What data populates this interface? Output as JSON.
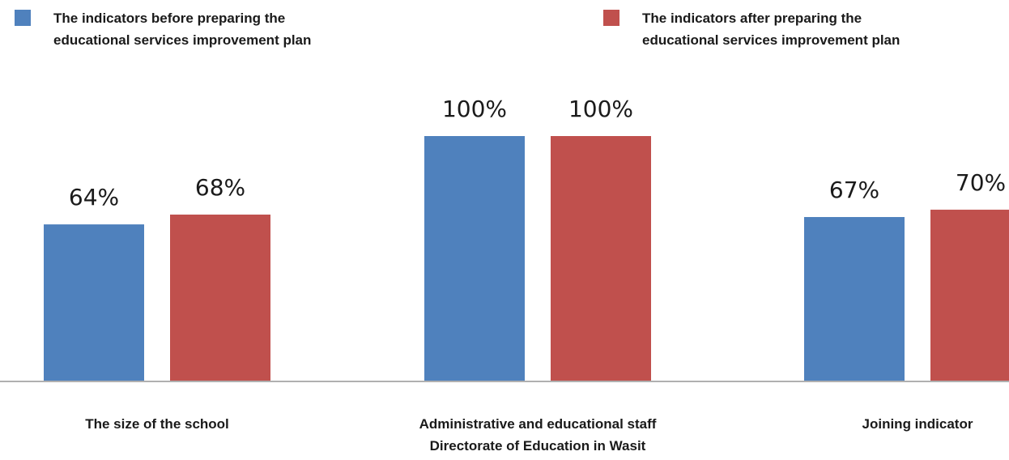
{
  "chart_data": {
    "type": "bar",
    "title": "",
    "xlabel": "",
    "ylabel": "",
    "ylim": [
      0,
      100
    ],
    "grid": false,
    "legend_position": "top",
    "categories": [
      [
        "The size of the school"
      ],
      [
        "Administrative and educational staff",
        "Directorate of Education in Wasit"
      ],
      [
        "Joining indicator"
      ]
    ],
    "series": [
      {
        "name": "The indicators before preparing the educational services improvement plan",
        "name_lines": [
          "The indicators before preparing the",
          "educational services improvement plan"
        ],
        "color": "#4f81bd",
        "values": [
          64,
          100,
          67
        ],
        "labels": [
          "64%",
          "100%",
          "67%"
        ]
      },
      {
        "name": "The indicators after preparing the educational services improvement plan",
        "name_lines": [
          "The indicators after preparing the",
          "educational services improvement plan"
        ],
        "color": "#c0504d",
        "values": [
          68,
          100,
          70
        ],
        "labels": [
          "68%",
          "100%",
          "70%"
        ]
      }
    ]
  }
}
